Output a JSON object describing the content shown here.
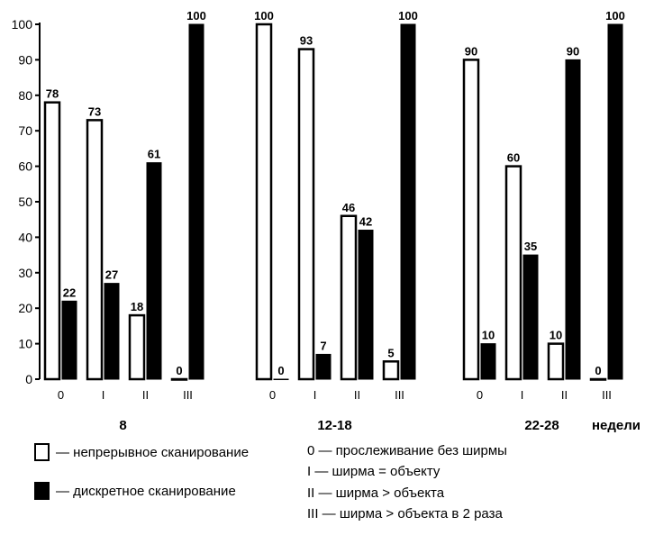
{
  "chart_data": {
    "type": "bar",
    "ylim": [
      0,
      100
    ],
    "yticks": [
      0,
      10,
      20,
      30,
      40,
      50,
      60,
      70,
      80,
      90,
      100
    ],
    "x_unit_label": "недели",
    "groups": [
      {
        "label": "8",
        "categories": [
          "0",
          "I",
          "II",
          "III"
        ],
        "series": [
          {
            "name": "непрерывное сканирование",
            "values": [
              78,
              73,
              18,
              0
            ]
          },
          {
            "name": "дискретное сканирование",
            "values": [
              22,
              27,
              61,
              100
            ]
          }
        ]
      },
      {
        "label": "12-18",
        "categories": [
          "0",
          "I",
          "II",
          "III"
        ],
        "series": [
          {
            "name": "непрерывное сканирование",
            "values": [
              100,
              93,
              46,
              5
            ]
          },
          {
            "name": "дискретное сканирование",
            "values": [
              0,
              7,
              42,
              100
            ]
          }
        ]
      },
      {
        "label": "22-28",
        "categories": [
          "0",
          "I",
          "II",
          "III"
        ],
        "series": [
          {
            "name": "непрерывное сканирование",
            "values": [
              90,
              60,
              10,
              0
            ]
          },
          {
            "name": "дискретное сканирование",
            "values": [
              10,
              35,
              90,
              100
            ]
          }
        ]
      }
    ],
    "legend": {
      "series": [
        {
          "label": "— непрерывное сканирование",
          "fill": "white"
        },
        {
          "label": "— дискретное сканирование",
          "fill": "black"
        }
      ],
      "categories": [
        "0 — прослеживание без ширмы",
        "I — ширма = объекту",
        "II — ширма > объекта",
        "III — ширма > объекта в 2 раза"
      ]
    }
  }
}
